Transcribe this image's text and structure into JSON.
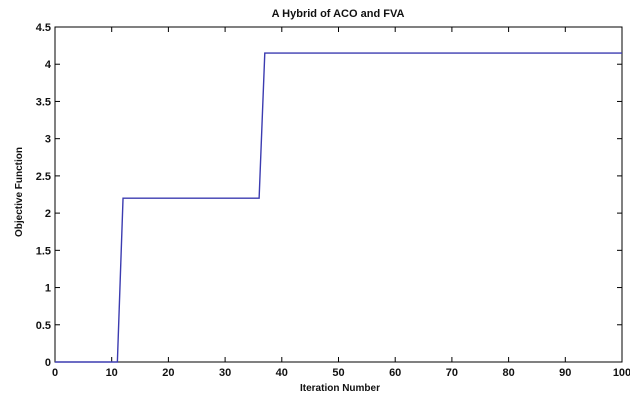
{
  "chart_data": {
    "type": "line",
    "title": "A Hybrid of ACO and FVA",
    "xlabel": "Iteration Number",
    "ylabel": "Objective Function",
    "xlim": [
      0,
      100
    ],
    "ylim": [
      0,
      4.5
    ],
    "xticks": [
      "0",
      "10",
      "20",
      "30",
      "40",
      "50",
      "60",
      "70",
      "80",
      "90",
      "100"
    ],
    "yticks": [
      "0",
      "0.5",
      "1",
      "1.5",
      "2",
      "2.5",
      "3",
      "3.5",
      "4",
      "4.5"
    ],
    "grid": false,
    "series": [
      {
        "color": "#3b3bb0",
        "x": [
          0,
          11,
          12,
          36,
          37,
          100
        ],
        "y": [
          0,
          0,
          2.2,
          2.2,
          4.15,
          4.15
        ]
      }
    ]
  }
}
